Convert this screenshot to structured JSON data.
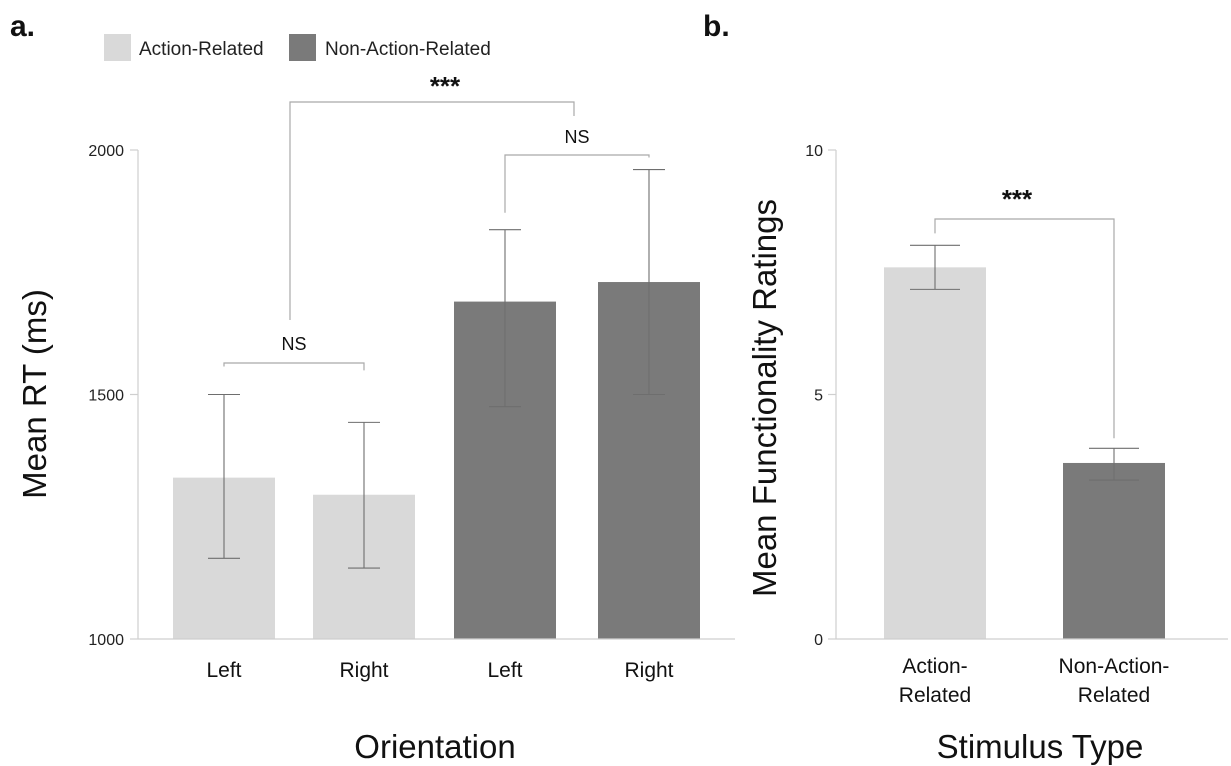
{
  "panels": {
    "a_label": "a.",
    "b_label": "b."
  },
  "legend": [
    {
      "label": "Action-Related",
      "color": "#d9d9d9"
    },
    {
      "label": "Non-Action-Related",
      "color": "#7a7a7a"
    }
  ],
  "colors": {
    "action": "#d9d9d9",
    "non_action": "#7a7a7a"
  },
  "chart_data": [
    {
      "type": "bar",
      "xlabel": "Orientation",
      "ylabel": "Mean RT (ms)",
      "ylim": [
        1000,
        2000
      ],
      "yticks": [
        1000,
        1500,
        2000
      ],
      "categories": [
        "Left",
        "Right",
        "Left",
        "Right"
      ],
      "bars": [
        {
          "category": "Left",
          "series": "Action-Related",
          "value": 1330,
          "err_low": 1165,
          "err_high": 1500
        },
        {
          "category": "Right",
          "series": "Action-Related",
          "value": 1295,
          "err_low": 1145,
          "err_high": 1443
        },
        {
          "category": "Left",
          "series": "Non-Action-Related",
          "value": 1690,
          "err_low": 1475,
          "err_high": 1837
        },
        {
          "category": "Right",
          "series": "Non-Action-Related",
          "value": 1730,
          "err_low": 1500,
          "err_high": 1960
        }
      ],
      "annotations": [
        {
          "text": "NS",
          "from": 0,
          "to": 1
        },
        {
          "text": "NS",
          "from": 2,
          "to": 3
        },
        {
          "text": "***",
          "from": "0-1",
          "to": "2-3"
        }
      ],
      "grid": false
    },
    {
      "type": "bar",
      "xlabel": "Stimulus Type",
      "ylabel": "Mean Functionality Ratings",
      "ylim": [
        0,
        10
      ],
      "yticks": [
        0,
        5,
        10
      ],
      "categories": [
        "Action-Related",
        "Non-Action-Related"
      ],
      "category_lines": [
        [
          "Action-",
          "Related"
        ],
        [
          "Non-Action-",
          "Related"
        ]
      ],
      "bars": [
        {
          "category": "Action-Related",
          "series": "Action-Related",
          "value": 7.6,
          "err_low": 7.15,
          "err_high": 8.05
        },
        {
          "category": "Non-Action-Related",
          "series": "Non-Action-Related",
          "value": 3.6,
          "err_low": 3.25,
          "err_high": 3.9
        }
      ],
      "annotations": [
        {
          "text": "***",
          "from": 0,
          "to": 1
        }
      ],
      "grid": false
    }
  ]
}
